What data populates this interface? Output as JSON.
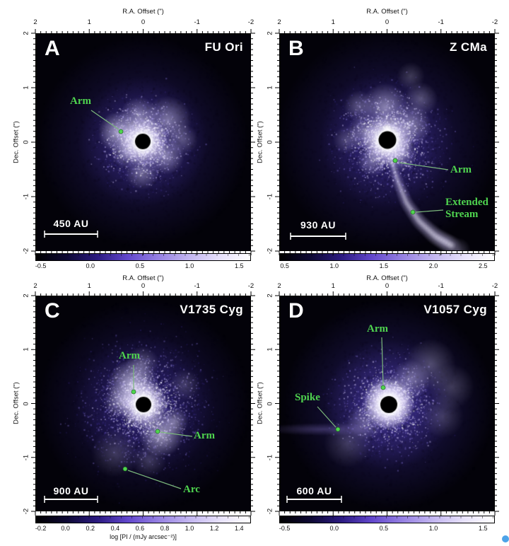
{
  "figure": {
    "ra_axis_label": "R.A. Offset (\")",
    "dec_axis_label": "Dec. Offset (\")",
    "ra_ticks": [
      "2",
      "1",
      "0",
      "-1",
      "-2"
    ],
    "dec_ticks": [
      "2",
      "1",
      "0",
      "-1",
      "-2"
    ]
  },
  "panels": [
    {
      "letter": "A",
      "title": "FU Ori",
      "scale_bar": "450 AU",
      "annotations": [
        {
          "label": "Arm"
        }
      ],
      "colorbar": {
        "ticks": [
          "-0.5",
          "0.0",
          "0.5",
          "1.0",
          "1.5"
        ]
      }
    },
    {
      "letter": "B",
      "title": "Z CMa",
      "scale_bar": "930 AU",
      "annotations": [
        {
          "label": "Arm"
        },
        {
          "label": "Extended Stream"
        }
      ],
      "colorbar": {
        "ticks": [
          "0.5",
          "1.0",
          "1.5",
          "2.0",
          "2.5"
        ]
      }
    },
    {
      "letter": "C",
      "title": "V1735 Cyg",
      "scale_bar": "900 AU",
      "annotations": [
        {
          "label": "Arm"
        },
        {
          "label": "Arm"
        },
        {
          "label": "Arc"
        }
      ],
      "colorbar": {
        "ticks": [
          "-0.2",
          "0.0",
          "0.2",
          "0.4",
          "0.6",
          "0.8",
          "1.0",
          "1.2",
          "1.4"
        ],
        "label": "log [PI / (mJy arcsec⁻²)]"
      }
    },
    {
      "letter": "D",
      "title": "V1057 Cyg",
      "scale_bar": "600 AU",
      "annotations": [
        {
          "label": "Arm"
        },
        {
          "label": "Spike"
        }
      ],
      "colorbar": {
        "ticks": [
          "-0.5",
          "0.0",
          "0.5",
          "1.0",
          "1.5"
        ]
      }
    }
  ],
  "colors": {
    "annotation_green": "#4fd44f",
    "annotation_line_green": "#7cb87c",
    "nebula_purple": "#6a50d2",
    "background_black": "#03020a",
    "text_white": "#ffffff",
    "axis_text": "#111111",
    "corner_dot_blue": "#4da3e8",
    "colorbar_stops": [
      "#000000",
      "#0d0833",
      "#2b1a80",
      "#6247cc",
      "#9681e2",
      "#c3b6f0",
      "#e7e1fa",
      "#ffffff"
    ]
  }
}
